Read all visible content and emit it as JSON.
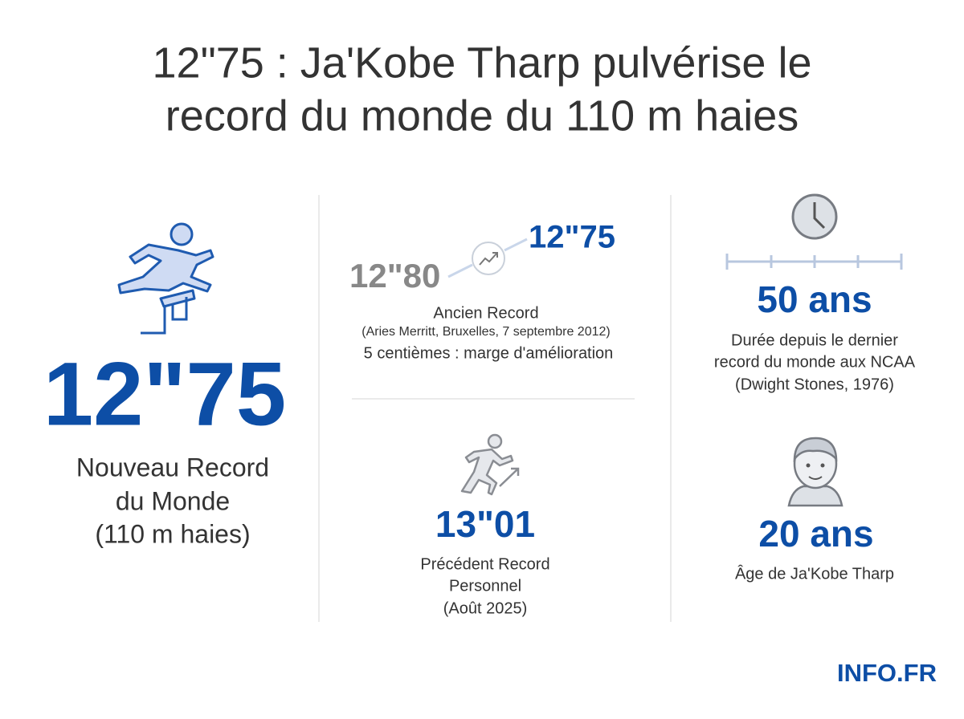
{
  "title": [
    "12\"75 : Ja'Kobe Tharp pulvérise le",
    "record du monde du 110 m haies"
  ],
  "left": {
    "value": "12\"75",
    "label": [
      "Nouveau Record",
      "du Monde",
      "(110 m haies)"
    ]
  },
  "middle_top": {
    "old": "12\"80",
    "new": "12\"75",
    "label": "Ancien Record",
    "detail": "(Aries Merritt, Bruxelles, 7 septembre 2012)",
    "margin": "5 centièmes : marge d'amélioration"
  },
  "middle_bottom": {
    "value": "13\"01",
    "label": [
      "Précédent Record",
      "Personnel",
      "(Août 2025)"
    ]
  },
  "right_top": {
    "value": "50 ans",
    "label": [
      "Durée depuis le dernier",
      "record du monde aux NCAA",
      "(Dwight Stones, 1976)"
    ]
  },
  "right_bottom": {
    "value": "20 ans",
    "label": "Âge de Ja'Kobe Tharp"
  },
  "footer": {
    "brand": "INFO.FR"
  }
}
